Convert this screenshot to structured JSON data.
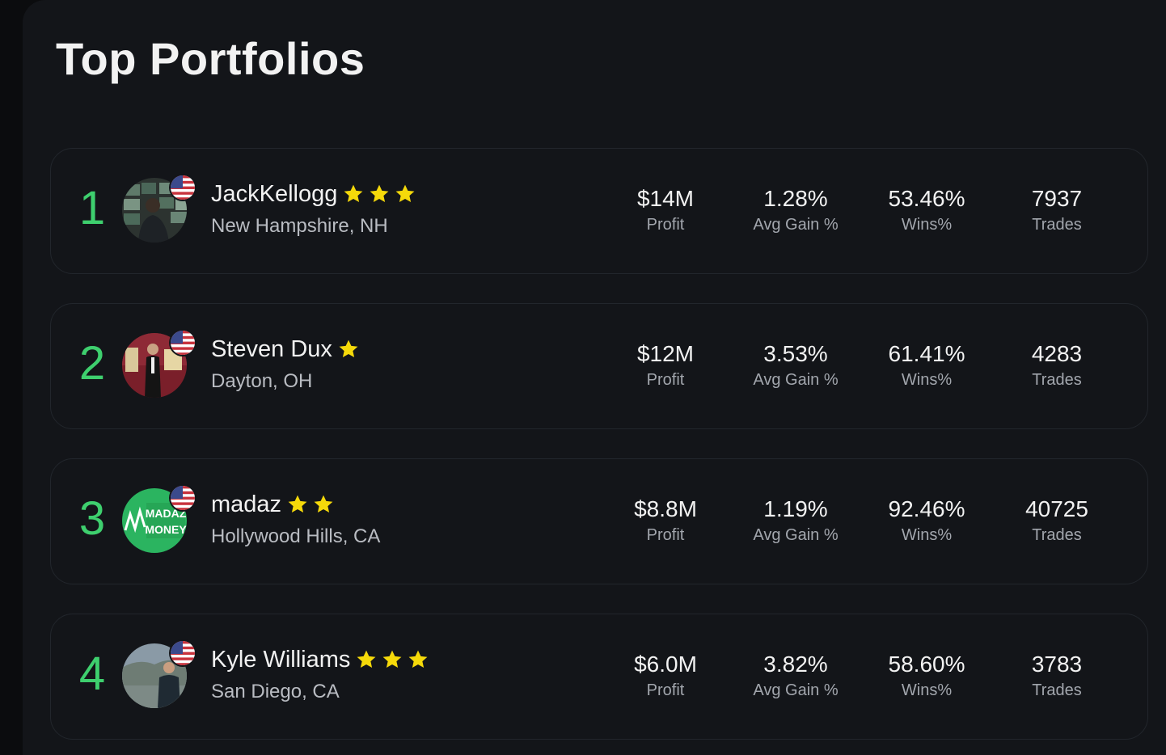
{
  "page": {
    "title": "Top Portfolios"
  },
  "colors": {
    "rank_green": "#3ecf6e",
    "star_gold": "#f5d90a",
    "background": "#131519",
    "card_border": "#22262c"
  },
  "traders": [
    {
      "rank": "1",
      "name": "JackKellogg",
      "stars": 3,
      "location": "New Hampshire, NH",
      "flag_icon": "us-flag-icon",
      "profit": "$14M",
      "profit_label": "Profit",
      "avg_gain": "1.28%",
      "avg_gain_label": "Avg Gain %",
      "wins": "53.46%",
      "wins_label": "Wins%",
      "trades": "7937",
      "trades_label": "Trades"
    },
    {
      "rank": "2",
      "name": "Steven Dux",
      "stars": 1,
      "location": "Dayton, OH",
      "flag_icon": "us-flag-icon",
      "profit": "$12M",
      "profit_label": "Profit",
      "avg_gain": "3.53%",
      "avg_gain_label": "Avg Gain %",
      "wins": "61.41%",
      "wins_label": "Wins%",
      "trades": "4283",
      "trades_label": "Trades"
    },
    {
      "rank": "3",
      "name": "madaz",
      "stars": 2,
      "location": "Hollywood Hills, CA",
      "flag_icon": "us-flag-icon",
      "avatar_text": [
        "MADAZ",
        "MONEY"
      ],
      "profit": "$8.8M",
      "profit_label": "Profit",
      "avg_gain": "1.19%",
      "avg_gain_label": "Avg Gain %",
      "wins": "92.46%",
      "wins_label": "Wins%",
      "trades": "40725",
      "trades_label": "Trades"
    },
    {
      "rank": "4",
      "name": "Kyle Williams",
      "stars": 3,
      "location": "San Diego, CA",
      "flag_icon": "us-flag-icon",
      "profit": "$6.0M",
      "profit_label": "Profit",
      "avg_gain": "3.82%",
      "avg_gain_label": "Avg Gain %",
      "wins": "58.60%",
      "wins_label": "Wins%",
      "trades": "3783",
      "trades_label": "Trades"
    }
  ]
}
